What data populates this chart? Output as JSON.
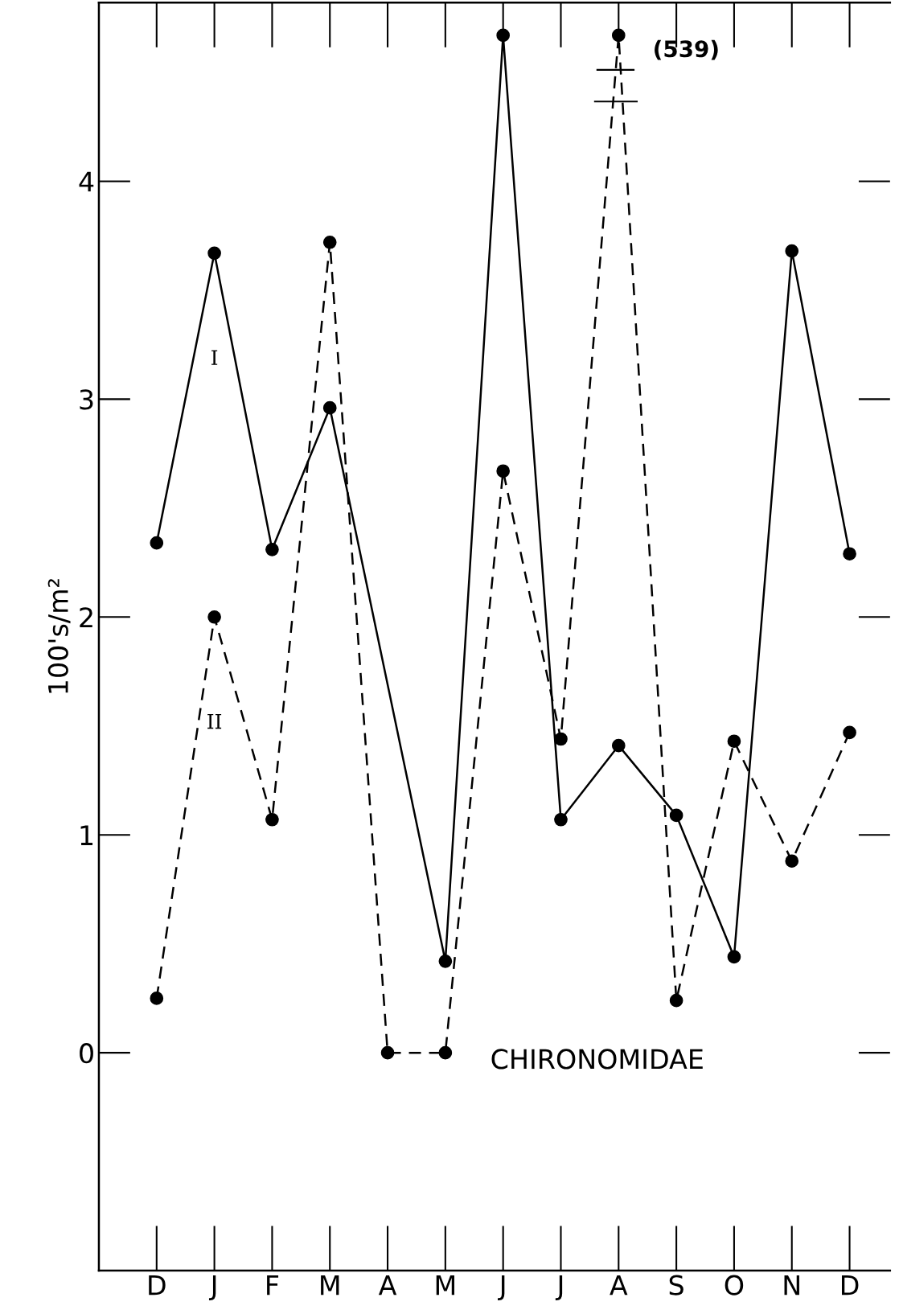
{
  "chart_data": {
    "type": "line",
    "ylabel": "100's/m²",
    "categories": [
      "D",
      "J",
      "F",
      "M",
      "A",
      "M",
      "J",
      "J",
      "A",
      "S",
      "O",
      "N",
      "D"
    ],
    "series": [
      {
        "name": "I",
        "color": "#000000",
        "line_style": "solid",
        "values": [
          2.34,
          3.67,
          2.31,
          2.96,
          null,
          0.42,
          4.67,
          1.07,
          1.41,
          1.09,
          0.44,
          3.68,
          2.29
        ]
      },
      {
        "name": "II",
        "color": "#000000",
        "line_style": "dashed",
        "values": [
          0.25,
          2.0,
          1.07,
          3.72,
          0,
          0,
          2.67,
          1.44,
          4.67,
          0.24,
          1.43,
          0.88,
          1.47
        ]
      }
    ],
    "ylim": [
      -1,
      4.82
    ],
    "yticks": [
      0,
      1,
      2,
      3,
      4
    ],
    "marker": "circle",
    "grid": false,
    "legend": false,
    "annotations": [
      "(539)",
      "CHIRONOMIDAE"
    ]
  }
}
